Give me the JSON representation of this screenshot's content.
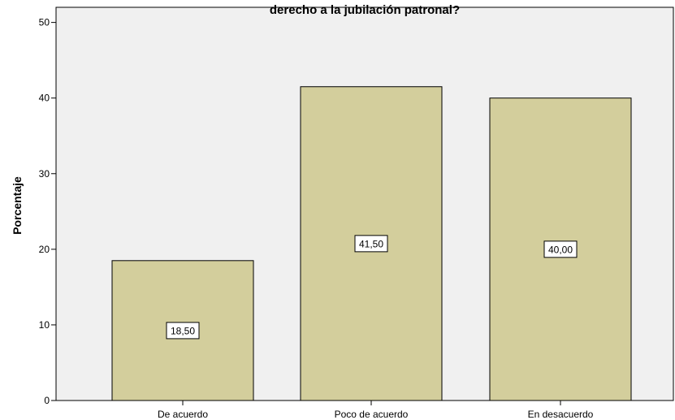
{
  "chart_data": {
    "type": "bar",
    "title": "derecho a la jubilación patronal?",
    "xlabel": "",
    "ylabel": "Porcentaje",
    "categories": [
      "De acuerdo",
      "Poco de acuerdo",
      "En desacuerdo"
    ],
    "values": [
      18.5,
      41.5,
      40.0
    ],
    "value_labels": [
      "18,50",
      "41,50",
      "40,00"
    ],
    "ylim": [
      0,
      52
    ],
    "yticks": [
      0,
      10,
      20,
      30,
      40,
      50
    ],
    "grid": false,
    "legend": "none",
    "colors": {
      "plot_background": "#f0f0f0",
      "bar_fill": "#d3ce9c",
      "bar_stroke": "#000000",
      "axis": "#000000"
    }
  }
}
